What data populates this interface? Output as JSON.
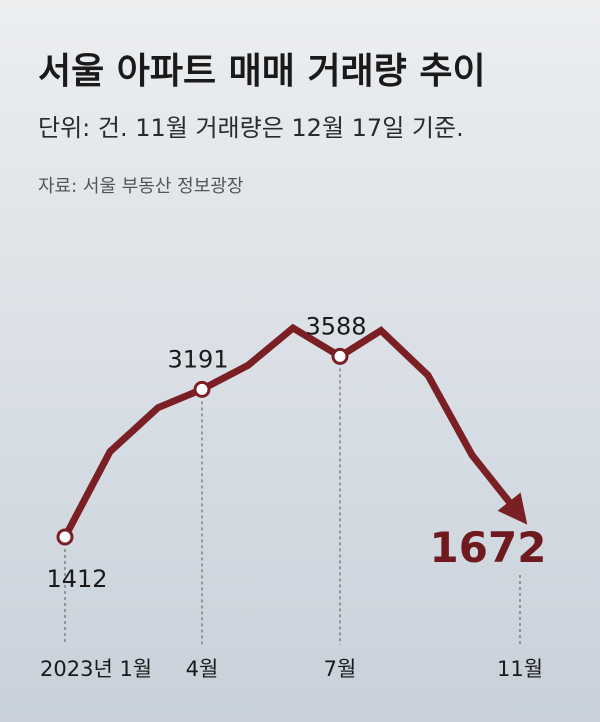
{
  "title": "서울 아파트 매매 거래량 추이",
  "subtitle": "단위: 건. 11월 거래량은 12월 17일 기준.",
  "source": "자료: 서울 부동산 정보광장",
  "chart_data": {
    "type": "line",
    "categories": [
      "2023년 1월",
      null,
      null,
      "4월",
      null,
      null,
      "7월",
      null,
      null,
      null,
      "11월"
    ],
    "values": [
      1412,
      2440,
      2970,
      3191,
      3480,
      3930,
      3588,
      3900,
      3360,
      2400,
      1672
    ],
    "value_labels": [
      "1412",
      null,
      null,
      "3191",
      null,
      null,
      "3588",
      null,
      null,
      null,
      "1672"
    ],
    "color": "#7a1f24"
  }
}
